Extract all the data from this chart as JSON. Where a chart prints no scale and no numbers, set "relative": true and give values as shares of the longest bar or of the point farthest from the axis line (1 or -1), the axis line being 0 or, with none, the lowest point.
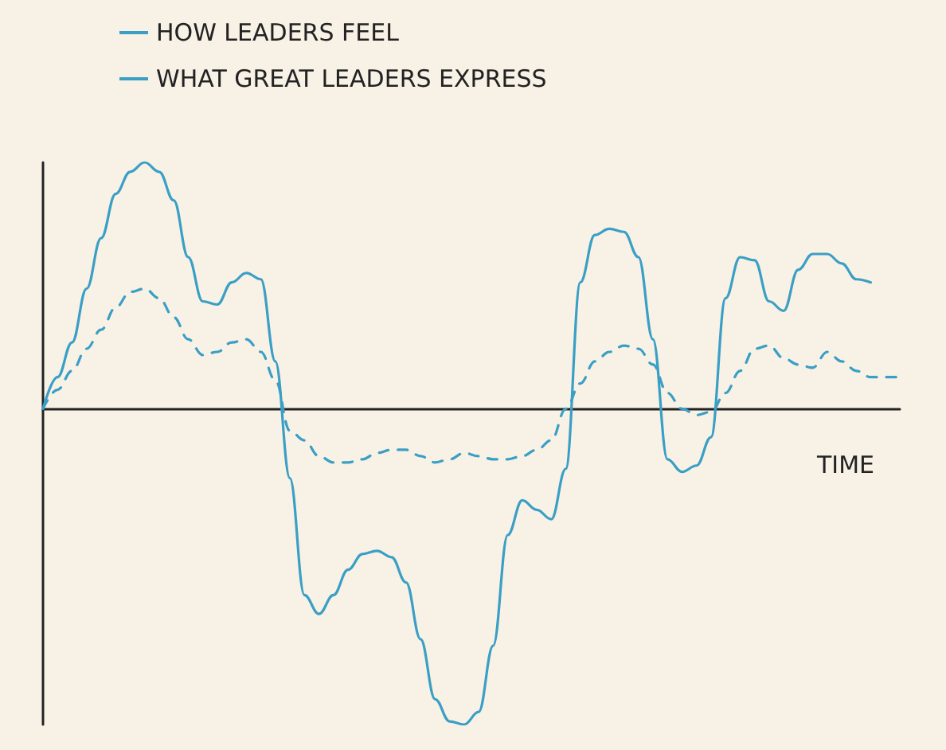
{
  "chart_data": {
    "type": "line",
    "relative": true,
    "xlabel": "TIME",
    "grid": false,
    "legend": "top left",
    "marker": "none",
    "categories": [
      null,
      null,
      null,
      null,
      null,
      null,
      null,
      null,
      null,
      null,
      null,
      null,
      null,
      null,
      null,
      null,
      null,
      null,
      null,
      null,
      null,
      null,
      null,
      null,
      null,
      null,
      null,
      null,
      null,
      null,
      null,
      null,
      null,
      null,
      null,
      null,
      null,
      null,
      null,
      null,
      null,
      null,
      null,
      null,
      null,
      null,
      null,
      null,
      null,
      null,
      null,
      null,
      null,
      null,
      null,
      null,
      null,
      null,
      null,
      null
    ],
    "series": [
      {
        "name": "HOW LEADERS FEEL",
        "color": "#3a9fc5",
        "line_style": "solid",
        "values": [
          0,
          0.1,
          0.21,
          0.38,
          0.54,
          0.68,
          0.75,
          0.78,
          0.75,
          0.66,
          0.48,
          0.34,
          0.33,
          0.4,
          0.43,
          0.41,
          0.15,
          -0.22,
          -0.59,
          -0.65,
          -0.59,
          -0.51,
          -0.46,
          -0.45,
          -0.47,
          -0.55,
          -0.73,
          -0.92,
          -0.99,
          -1,
          -0.96,
          -0.75,
          -0.4,
          -0.29,
          -0.32,
          -0.35,
          -0.19,
          0.4,
          0.55,
          0.57,
          0.56,
          0.48,
          0.22,
          -0.16,
          -0.2,
          -0.18,
          -0.09,
          0.35,
          0.48,
          0.47,
          0.34,
          0.31,
          0.44,
          0.49,
          0.49,
          0.46,
          0.41,
          0.4,
          null,
          null
        ]
      },
      {
        "name": "WHAT GREAT LEADERS EXPRESS",
        "color": "#3a9fc5",
        "line_style": "dashed",
        "values": [
          0,
          0.06,
          0.12,
          0.19,
          0.25,
          0.32,
          0.37,
          0.38,
          0.35,
          0.29,
          0.22,
          0.17,
          0.18,
          0.21,
          0.22,
          0.18,
          0.09,
          -0.07,
          -0.1,
          -0.15,
          -0.17,
          -0.17,
          -0.16,
          -0.14,
          -0.13,
          -0.13,
          -0.15,
          -0.17,
          -0.16,
          -0.14,
          -0.15,
          -0.16,
          -0.16,
          -0.15,
          -0.13,
          -0.1,
          0,
          0.08,
          0.15,
          0.18,
          0.2,
          0.19,
          0.14,
          0.05,
          0,
          -0.02,
          -0.01,
          0.05,
          0.12,
          0.19,
          0.2,
          0.16,
          0.14,
          0.13,
          0.18,
          0.15,
          0.12,
          0.1,
          0.1,
          0.1
        ]
      }
    ]
  }
}
